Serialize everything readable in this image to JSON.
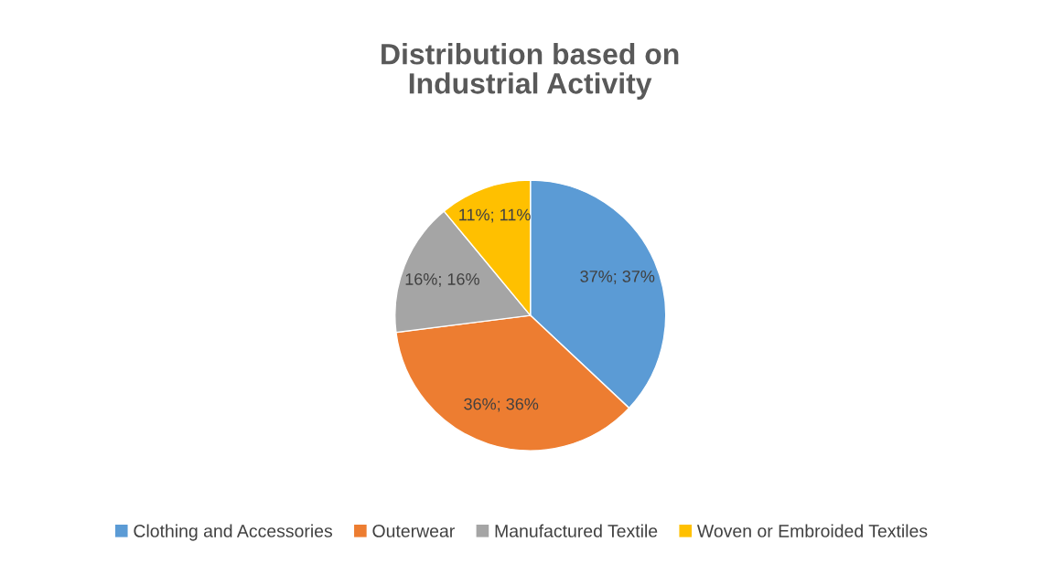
{
  "chart_data": {
    "type": "pie",
    "title": "Distribution based on\nIndustrial Activity",
    "categories": [
      "Clothing and Accessories",
      "Outerwear",
      "Manufactured Textile",
      "Woven or Embroided Textiles"
    ],
    "values": [
      37,
      36,
      16,
      11
    ],
    "colors": [
      "#5b9bd5",
      "#ed7d31",
      "#a5a5a5",
      "#ffc000"
    ],
    "value_labels": [
      "37%; 37%",
      "36%; 36%",
      "16%; 16%",
      "11%; 11%"
    ],
    "legend": "bottom"
  }
}
